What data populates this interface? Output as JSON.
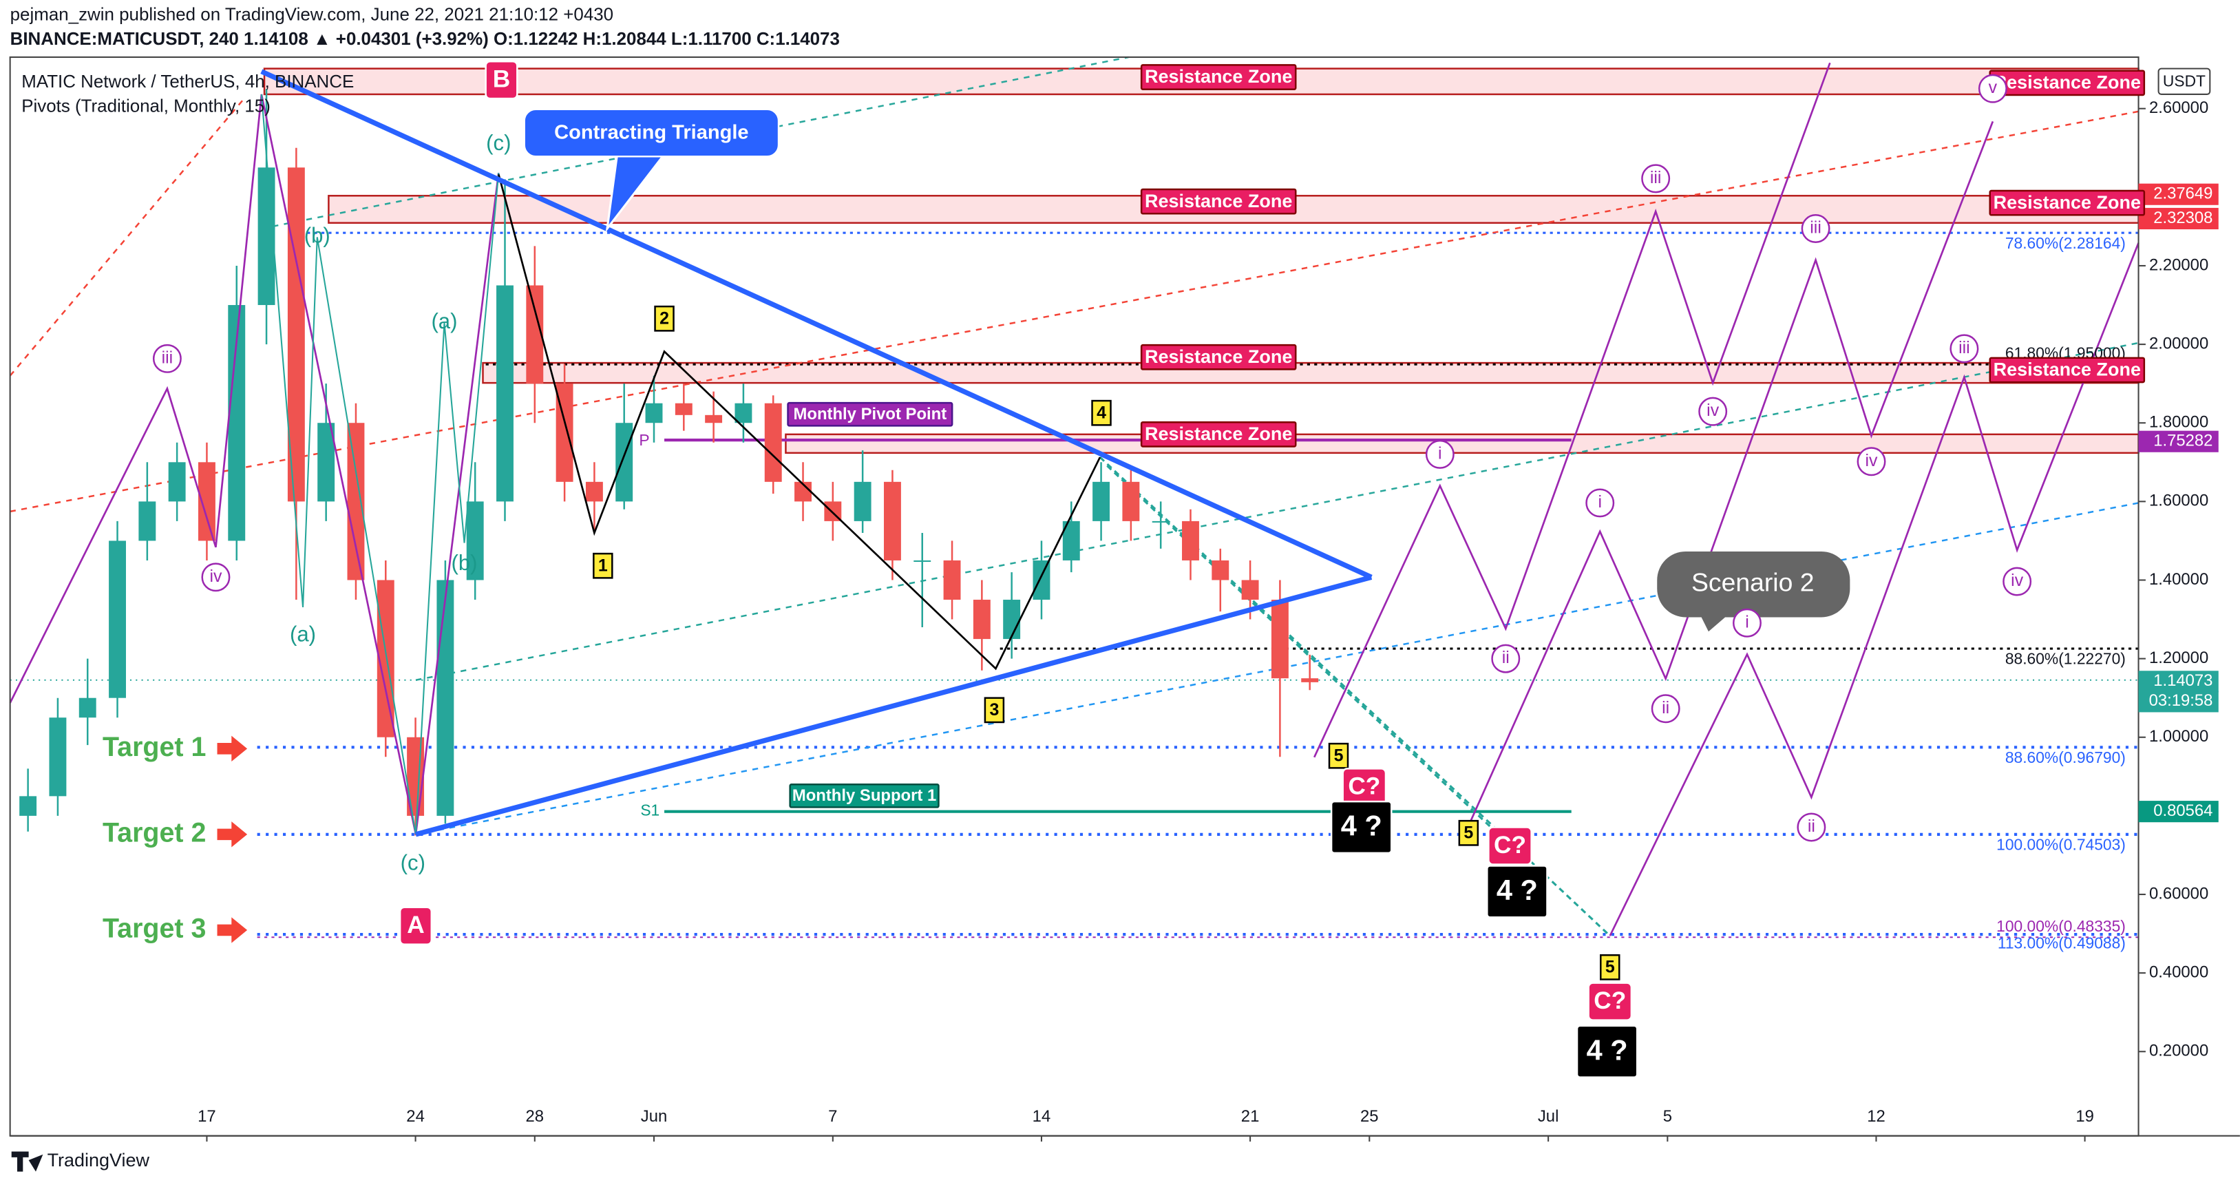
{
  "chart_data": {
    "type": "candlestick",
    "header": [
      "pejman_zwin published on TradingView.com, June 22, 2021 21:10:12 +0430",
      "BINANCE:MATICUSDT, 240  1.14108 ▲ +0.04301 (+3.92%) O:1.12242 H:1.20844 L:1.11700 C:1.14073"
    ],
    "legend": [
      "MATIC Network / TetherUS, 4h, BINANCE",
      "Pivots (Traditional, Monthly, 15)"
    ],
    "currency": "USDT",
    "x": [
      -6,
      -5,
      -4,
      -3,
      -2,
      -1,
      0,
      1,
      2,
      3,
      4,
      5,
      6,
      7,
      8,
      9,
      10,
      11,
      12,
      13,
      14,
      15,
      16,
      17,
      18,
      19,
      20,
      21,
      22,
      23,
      24,
      25,
      26,
      27,
      28,
      29,
      30,
      31,
      32,
      33,
      34,
      35,
      36,
      37
    ],
    "open": [
      0.8,
      0.85,
      1.05,
      1.1,
      1.5,
      1.6,
      1.7,
      1.5,
      2.1,
      2.45,
      1.6,
      1.8,
      1.4,
      1.0,
      0.8,
      1.4,
      1.6,
      2.15,
      1.9,
      1.65,
      1.6,
      1.8,
      1.85,
      1.82,
      1.8,
      1.85,
      1.65,
      1.6,
      1.55,
      1.65,
      1.45,
      1.45,
      1.35,
      1.25,
      1.35,
      1.45,
      1.55,
      1.65,
      1.55,
      1.55,
      1.45,
      1.4,
      1.35,
      1.15
    ],
    "high": [
      0.92,
      1.1,
      1.2,
      1.55,
      1.7,
      1.75,
      1.75,
      2.2,
      2.65,
      2.5,
      1.9,
      1.85,
      1.45,
      1.05,
      1.45,
      1.7,
      2.42,
      2.25,
      1.95,
      1.7,
      1.9,
      1.92,
      1.9,
      1.88,
      1.9,
      1.87,
      1.7,
      1.65,
      1.73,
      1.68,
      1.52,
      1.5,
      1.4,
      1.42,
      1.5,
      1.6,
      1.7,
      1.68,
      1.6,
      1.58,
      1.48,
      1.45,
      1.4,
      1.21
    ],
    "low": [
      0.76,
      0.8,
      0.98,
      1.05,
      1.45,
      1.55,
      1.45,
      1.45,
      2.0,
      1.35,
      1.55,
      1.35,
      0.95,
      0.75,
      0.78,
      1.35,
      1.55,
      1.8,
      1.6,
      1.52,
      1.58,
      1.75,
      1.78,
      1.75,
      1.75,
      1.62,
      1.55,
      1.5,
      1.52,
      1.4,
      1.28,
      1.3,
      1.17,
      1.2,
      1.3,
      1.42,
      1.5,
      1.5,
      1.48,
      1.4,
      1.32,
      1.3,
      0.95,
      1.12
    ],
    "close": [
      0.85,
      1.05,
      1.1,
      1.5,
      1.6,
      1.7,
      1.5,
      2.1,
      2.45,
      1.6,
      1.8,
      1.4,
      1.0,
      0.8,
      1.4,
      1.6,
      2.15,
      1.9,
      1.65,
      1.6,
      1.8,
      1.85,
      1.82,
      1.8,
      1.85,
      1.65,
      1.6,
      1.55,
      1.65,
      1.45,
      1.45,
      1.35,
      1.25,
      1.35,
      1.45,
      1.55,
      1.65,
      1.55,
      1.55,
      1.45,
      1.4,
      1.35,
      1.15,
      1.14
    ],
    "up_color": "#26a69a",
    "down_color": "#ef5350",
    "xlim": [
      -6.6,
      64.8
    ],
    "xticks": [
      {
        "value": 0,
        "label": "17"
      },
      {
        "value": 7,
        "label": "24"
      },
      {
        "value": 11,
        "label": "28"
      },
      {
        "value": 15,
        "label": "Jun"
      },
      {
        "value": 21,
        "label": "7"
      },
      {
        "value": 28,
        "label": "14"
      },
      {
        "value": 35,
        "label": "21"
      },
      {
        "value": 39,
        "label": "25"
      },
      {
        "value": 45,
        "label": "Jul"
      },
      {
        "value": 49,
        "label": "5"
      },
      {
        "value": 56,
        "label": "12"
      },
      {
        "value": 63,
        "label": "19"
      }
    ],
    "ylim": [
      0,
      2.72
    ],
    "yticks": [
      {
        "value": 0.2,
        "label": "0.20000"
      },
      {
        "value": 0.4,
        "label": "0.40000"
      },
      {
        "value": 0.6,
        "label": "0.60000"
      },
      {
        "value": 0.8,
        "label": "0.80000"
      },
      {
        "value": 1.0,
        "label": "1.00000"
      },
      {
        "value": 1.2,
        "label": "1.20000"
      },
      {
        "value": 1.4,
        "label": "1.40000"
      },
      {
        "value": 1.6,
        "label": "1.60000"
      },
      {
        "value": 1.8,
        "label": "1.80000"
      },
      {
        "value": 2.0,
        "label": "2.00000"
      },
      {
        "value": 2.2,
        "label": "2.20000"
      },
      {
        "value": 2.6,
        "label": "2.60000"
      }
    ],
    "price_badges": [
      {
        "label": "2.37649",
        "color": "#f23645"
      },
      {
        "label": "2.32308",
        "color": "#f23645"
      },
      {
        "label": "1.75282",
        "color": "#9c27b0"
      },
      {
        "label": "1.14073",
        "color": "#26a69a"
      },
      {
        "label": "03:19:58",
        "color": "#26a69a"
      },
      {
        "label": "0.80564",
        "color": "#089981"
      }
    ],
    "fib_labels": [
      "78.60%(2.28164)",
      "61.80%(1.95000)",
      "88.60%(1.22270)",
      "88.60%(0.96790)",
      "100.00%(0.74503)",
      "100.00%(0.48335)",
      "113.00%(0.49088)"
    ],
    "zones": [
      "Resistance Zone",
      "Resistance Zone",
      "Resistance Zone",
      "Resistance Zone",
      "Resistance Zone",
      "Resistance Zone",
      "Resistance Zone"
    ],
    "targets": [
      "Target 1",
      "Target 2",
      "Target 3"
    ],
    "notes": [
      "Contracting Triangle",
      "Monthly Pivot Point",
      "Monthly Support 1",
      "P",
      "S1",
      "Scenario 2"
    ],
    "teal_waves": [
      "(c)",
      "(b)",
      "(a)",
      "(b)",
      "(a)",
      "(c)"
    ],
    "purple_waves": [
      "iii",
      "iv",
      "iii",
      "iv",
      "i",
      "ii",
      "iii",
      "iv",
      "i",
      "ii",
      "iii",
      "iv",
      "i",
      "ii",
      "v"
    ],
    "yellow_waves": [
      "1",
      "2",
      "3",
      "4",
      "5",
      "5",
      "5"
    ],
    "red_labels": [
      "B",
      "A",
      "C?",
      "C?",
      "C?"
    ],
    "black_labels": [
      "4 ?",
      "4 ?",
      "4 ?"
    ],
    "footer": "TradingView"
  }
}
